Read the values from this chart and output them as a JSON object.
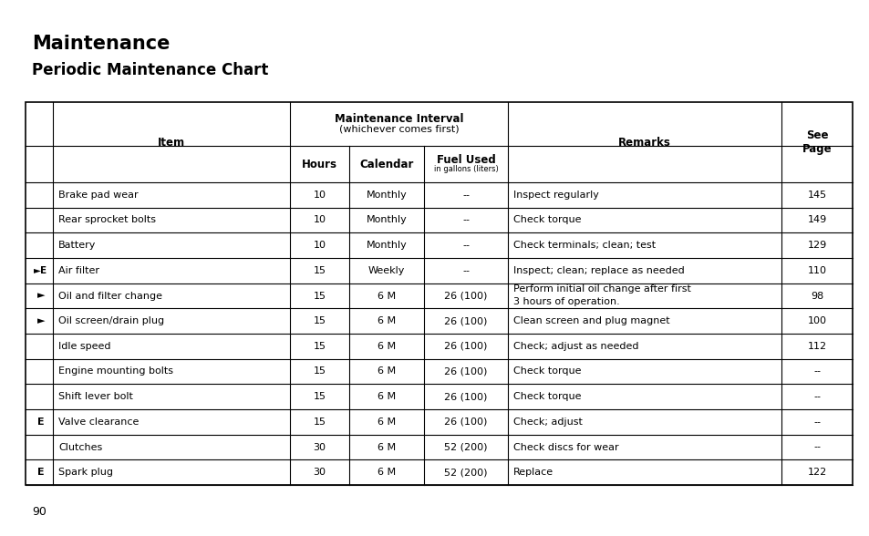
{
  "title1": "Maintenance",
  "title2": "Periodic Maintenance Chart",
  "rows": [
    {
      "prefix": "",
      "item": "Brake pad wear",
      "hours": "10",
      "calendar": "Monthly",
      "fuel": "--",
      "remarks": "Inspect regularly",
      "page": "145"
    },
    {
      "prefix": "",
      "item": "Rear sprocket bolts",
      "hours": "10",
      "calendar": "Monthly",
      "fuel": "--",
      "remarks": "Check torque",
      "page": "149"
    },
    {
      "prefix": "",
      "item": "Battery",
      "hours": "10",
      "calendar": "Monthly",
      "fuel": "--",
      "remarks": "Check terminals; clean; test",
      "page": "129"
    },
    {
      "prefix": "►E",
      "item": "Air filter",
      "hours": "15",
      "calendar": "Weekly",
      "fuel": "--",
      "remarks": "Inspect; clean; replace as needed",
      "page": "110"
    },
    {
      "prefix": "►",
      "item": "Oil and filter change",
      "hours": "15",
      "calendar": "6 M",
      "fuel": "26 (100)",
      "remarks": "Perform initial oil change after first\n3 hours of operation.",
      "page": "98"
    },
    {
      "prefix": "►",
      "item": "Oil screen/drain plug",
      "hours": "15",
      "calendar": "6 M",
      "fuel": "26 (100)",
      "remarks": "Clean screen and plug magnet",
      "page": "100"
    },
    {
      "prefix": "",
      "item": "Idle speed",
      "hours": "15",
      "calendar": "6 M",
      "fuel": "26 (100)",
      "remarks": "Check; adjust as needed",
      "page": "112"
    },
    {
      "prefix": "",
      "item": "Engine mounting bolts",
      "hours": "15",
      "calendar": "6 M",
      "fuel": "26 (100)",
      "remarks": "Check torque",
      "page": "--"
    },
    {
      "prefix": "",
      "item": "Shift lever bolt",
      "hours": "15",
      "calendar": "6 M",
      "fuel": "26 (100)",
      "remarks": "Check torque",
      "page": "--"
    },
    {
      "prefix": "E",
      "item": "Valve clearance",
      "hours": "15",
      "calendar": "6 M",
      "fuel": "26 (100)",
      "remarks": "Check; adjust",
      "page": "--"
    },
    {
      "prefix": "",
      "item": "Clutches",
      "hours": "30",
      "calendar": "6 M",
      "fuel": "52 (200)",
      "remarks": "Check discs for wear",
      "page": "--"
    },
    {
      "prefix": "E",
      "item": "Spark plug",
      "hours": "30",
      "calendar": "6 M",
      "fuel": "52 (200)",
      "remarks": "Replace",
      "page": "122"
    }
  ],
  "bg_color": "#ffffff",
  "text_color": "#000000",
  "page_number": "90",
  "title1_fontsize": 15,
  "title2_fontsize": 12,
  "table_fontsize": 8,
  "header_fontsize": 8.5
}
